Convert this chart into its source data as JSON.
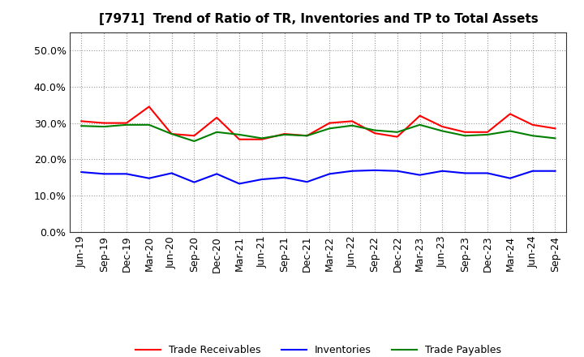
{
  "title": "[7971]  Trend of Ratio of TR, Inventories and TP to Total Assets",
  "x_labels": [
    "Jun-19",
    "Sep-19",
    "Dec-19",
    "Mar-20",
    "Jun-20",
    "Sep-20",
    "Dec-20",
    "Mar-21",
    "Jun-21",
    "Sep-21",
    "Dec-21",
    "Mar-22",
    "Jun-22",
    "Sep-22",
    "Dec-22",
    "Mar-23",
    "Jun-23",
    "Sep-23",
    "Dec-23",
    "Mar-24",
    "Jun-24",
    "Sep-24"
  ],
  "trade_receivables": [
    0.305,
    0.3,
    0.3,
    0.345,
    0.27,
    0.265,
    0.315,
    0.255,
    0.255,
    0.27,
    0.265,
    0.3,
    0.305,
    0.272,
    0.262,
    0.32,
    0.29,
    0.275,
    0.275,
    0.325,
    0.295,
    0.285
  ],
  "inventories": [
    0.165,
    0.16,
    0.16,
    0.148,
    0.162,
    0.137,
    0.16,
    0.133,
    0.145,
    0.15,
    0.138,
    0.16,
    0.168,
    0.17,
    0.168,
    0.157,
    0.168,
    0.162,
    0.162,
    0.148,
    0.168,
    0.168
  ],
  "trade_payables": [
    0.292,
    0.29,
    0.295,
    0.295,
    0.27,
    0.25,
    0.275,
    0.268,
    0.258,
    0.268,
    0.265,
    0.285,
    0.293,
    0.28,
    0.275,
    0.295,
    0.278,
    0.265,
    0.268,
    0.278,
    0.265,
    0.258
  ],
  "tr_color": "#ff0000",
  "inv_color": "#0000ff",
  "tp_color": "#008000",
  "ylim": [
    0.0,
    0.55
  ],
  "yticks": [
    0.0,
    0.1,
    0.2,
    0.3,
    0.4,
    0.5
  ],
  "background_color": "#ffffff",
  "grid_color": "#999999",
  "title_fontsize": 11,
  "tick_fontsize": 9,
  "legend_labels": [
    "Trade Receivables",
    "Inventories",
    "Trade Payables"
  ]
}
